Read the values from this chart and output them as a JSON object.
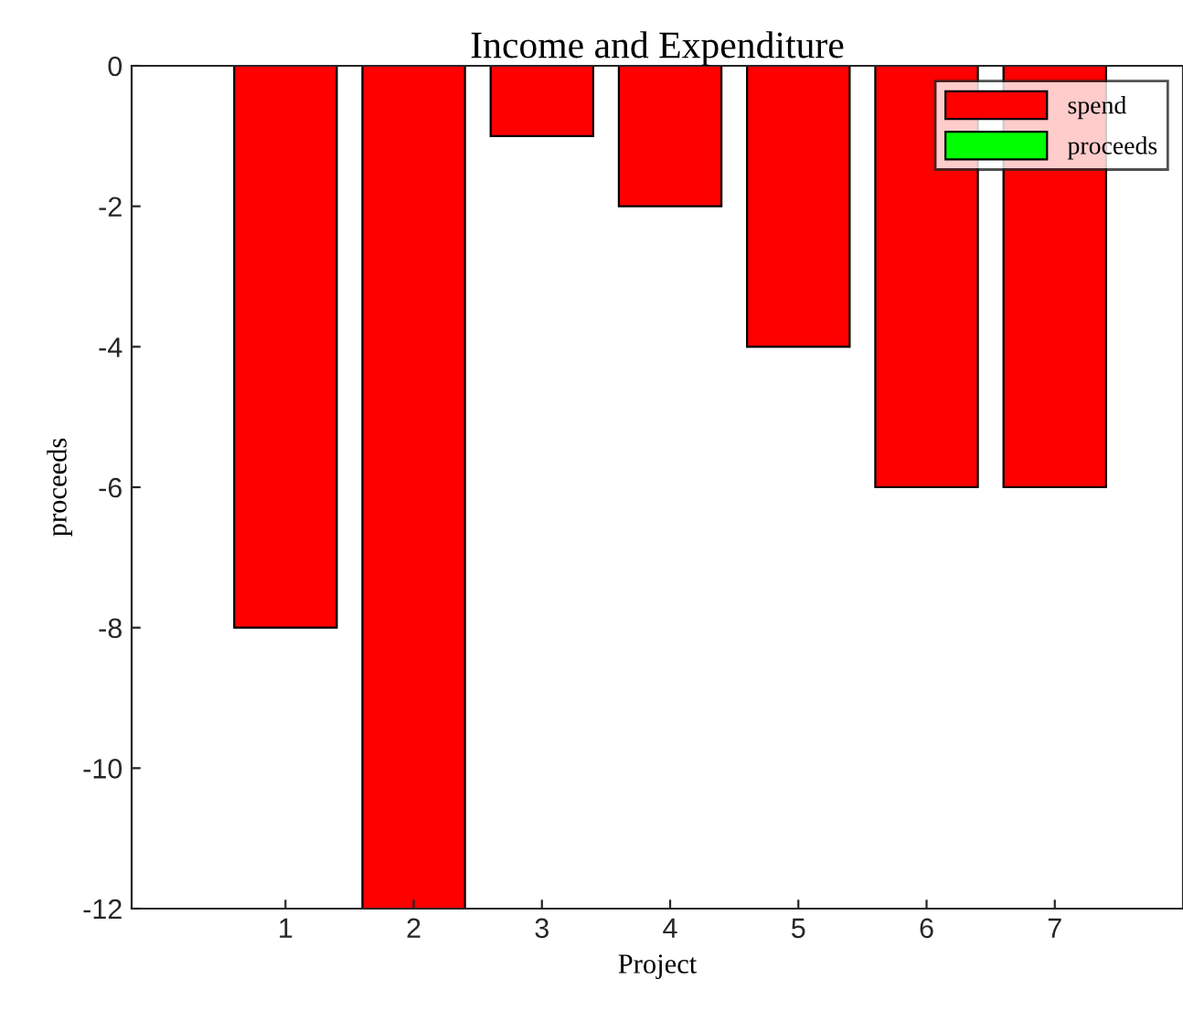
{
  "chart_data": {
    "type": "bar",
    "title": "Income and Expenditure",
    "xlabel": "Project",
    "ylabel": "proceeds",
    "categories": [
      "1",
      "2",
      "3",
      "4",
      "5",
      "6",
      "7"
    ],
    "series": [
      {
        "name": "spend",
        "color": "#ff0000",
        "values": [
          -8,
          -12,
          -1,
          -2,
          -4,
          -6,
          -6
        ]
      },
      {
        "name": "proceeds",
        "color": "#00ff00",
        "values": [
          null,
          null,
          null,
          null,
          null,
          null,
          null
        ]
      }
    ],
    "stacked": true,
    "ylim": [
      -12,
      0
    ],
    "yticks": [
      -12,
      -10,
      -8,
      -6,
      -4,
      -2,
      0
    ],
    "grid": false,
    "legend": "top right"
  }
}
